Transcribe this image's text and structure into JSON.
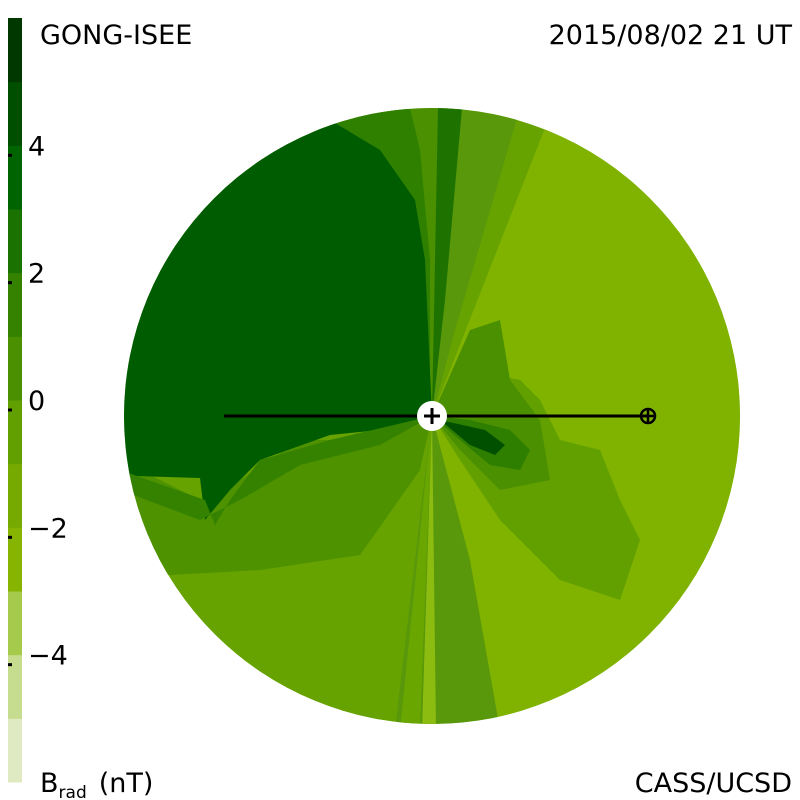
{
  "header": {
    "source": "GONG-ISEE",
    "timestamp": "2015/08/02 21 UT"
  },
  "colorbar": {
    "lim": [
      -6,
      6
    ],
    "ticks": [
      4,
      2,
      0,
      {
        "value": -2,
        "label": "−2"
      },
      {
        "value": -4,
        "label": "−4"
      }
    ],
    "colors": [
      "#dfeac2",
      "#c6dc8e",
      "#a6ca4c",
      "#86b400",
      "#76aa00",
      "#62a000",
      "#4a9000",
      "#348200",
      "#1a7200",
      "#006400",
      "#004e00",
      "#003800"
    ],
    "label": {
      "symbol": "B",
      "subscript": "rad",
      "unit": "(nT)"
    }
  },
  "credit": "CASS/UCSD"
}
